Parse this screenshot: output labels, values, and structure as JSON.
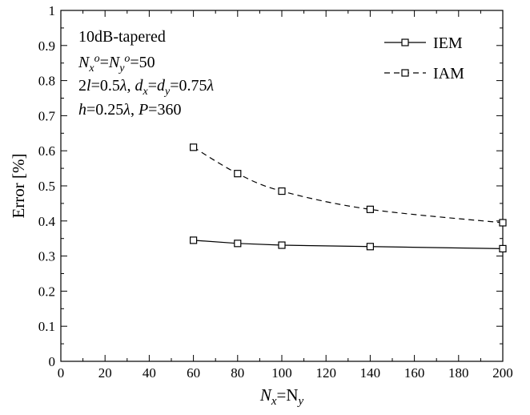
{
  "chart_data": {
    "type": "line",
    "xlabel": {
      "main": "N",
      "sub1": "x",
      "eq": "=N",
      "sub2": "y"
    },
    "ylabel": "Error [%]",
    "xlim": [
      0,
      200
    ],
    "ylim": [
      0,
      1
    ],
    "x_ticks": [
      "0",
      "20",
      "40",
      "60",
      "80",
      "100",
      "120",
      "140",
      "160",
      "180",
      "200"
    ],
    "y_ticks": [
      "0",
      "0.1",
      "0.2",
      "0.3",
      "0.4",
      "0.5",
      "0.6",
      "0.7",
      "0.8",
      "0.9",
      "1"
    ],
    "grid": false,
    "legend_position": "top-right",
    "annotation": {
      "line1": "10dB-tapered",
      "line2": {
        "a": "N",
        "a_sub": "x",
        "a_sup": "o",
        "eq1": "=",
        "b": "N",
        "b_sub": "y",
        "b_sup": "o",
        "rest": "=50"
      },
      "line3": {
        "two": "2",
        "l": "l",
        "eq1": "=0.5",
        "lam1": "λ",
        "comma": ", ",
        "d1": "d",
        "d1_sub": "x",
        "eq2": "=",
        "d2": "d",
        "d2_sub": "y",
        "eq3": "=0.75",
        "lam2": "λ"
      },
      "line4": {
        "h": "h",
        "eq1": "=0.25",
        "lam": "λ",
        "comma": ", ",
        "P": "P",
        "eq2": "=360"
      }
    },
    "series": [
      {
        "name": "IEM",
        "style": "solid",
        "marker": "open-square",
        "x": [
          60,
          80,
          100,
          140,
          200
        ],
        "y": [
          0.345,
          0.336,
          0.331,
          0.327,
          0.321
        ]
      },
      {
        "name": "IAM",
        "style": "dashed",
        "marker": "open-square",
        "x": [
          60,
          80,
          100,
          140,
          200
        ],
        "y": [
          0.61,
          0.535,
          0.485,
          0.433,
          0.395
        ]
      }
    ]
  }
}
